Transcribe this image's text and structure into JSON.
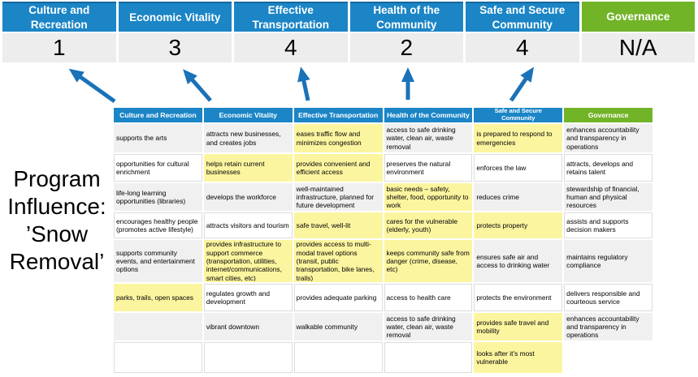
{
  "colors": {
    "blue": "#1b85c6",
    "blue_dark": "#16689c",
    "green": "#72b428",
    "highlight": "#fcf5a0",
    "band": "#f0f0f0",
    "score_bg": "#ededed",
    "arrow": "#1a72b8"
  },
  "program_label": "Program Influence: ’Snow Removal’",
  "pillars": [
    {
      "id": "culture-and-recreation",
      "label": "Culture and Recreation",
      "score": "1",
      "theme": "blue"
    },
    {
      "id": "economic-vitality",
      "label": "Economic Vitality",
      "score": "3",
      "theme": "blue"
    },
    {
      "id": "effective-transportation",
      "label": "Effective Transportation",
      "score": "4",
      "theme": "blue"
    },
    {
      "id": "health-of-the-community",
      "label": "Health of the Community",
      "score": "2",
      "theme": "blue"
    },
    {
      "id": "safe-and-secure-community",
      "label": "Safe and Secure Community",
      "score": "4",
      "theme": "blue"
    },
    {
      "id": "governance",
      "label": "Governance",
      "score": "N/A",
      "theme": "green"
    }
  ],
  "matrix": {
    "headers": [
      {
        "label": "Culture and Recreation",
        "theme": "blue"
      },
      {
        "label": "Economic Vitality",
        "theme": "blue"
      },
      {
        "label": "Effective Transportation",
        "theme": "blue"
      },
      {
        "label": "Health of the Community",
        "theme": "blue"
      },
      {
        "label": "Safe and Secure Community",
        "theme": "blue"
      },
      {
        "label": "Governance",
        "theme": "green"
      }
    ],
    "rows": [
      [
        {
          "text": "supports the arts"
        },
        {
          "text": "attracts new businesses, and creates jobs"
        },
        {
          "text": "eases traffic flow and minimizes congestion",
          "highlight": true
        },
        {
          "text": "access to safe drinking water, clean air, waste removal"
        },
        {
          "text": "is prepared to respond to emergencies",
          "highlight": true
        },
        {
          "text": "enhances accountability and transparency in operations"
        }
      ],
      [
        {
          "text": "opportunities for cultural enrichment"
        },
        {
          "text": "helps retain current businesses",
          "highlight": true
        },
        {
          "text": "provides convenient and efficient access",
          "highlight": true
        },
        {
          "text": "preserves the natural environment"
        },
        {
          "text": "enforces the law"
        },
        {
          "text": "attracts, develops and retains talent"
        }
      ],
      [
        {
          "text": "life-long learning opportunities (libraries)"
        },
        {
          "text": "develops the workforce"
        },
        {
          "text": "well-maintained infrastructure, planned for future development"
        },
        {
          "text": "basic needs – safety, shelter, food, opportunity to work",
          "highlight": true
        },
        {
          "text": "reduces crime"
        },
        {
          "text": "stewardship of financial, human and physical resources"
        }
      ],
      [
        {
          "text": "encourages healthy people (promotes active lifestyle)"
        },
        {
          "text": "attracts visitors and tourism"
        },
        {
          "text": "safe travel, well-lit",
          "highlight": true
        },
        {
          "text": "cares for the vulnerable (elderly, youth)",
          "highlight": true
        },
        {
          "text": "protects property",
          "highlight": true
        },
        {
          "text": "assists and supports decision makers"
        }
      ],
      [
        {
          "text": "supports community events, and entertainment options"
        },
        {
          "text": "provides infrastructure to support commerce (transportation, utilities, internet/communications, smart cities, etc)",
          "highlight": true
        },
        {
          "text": "provides access to multi-modal travel options (transit, public transportation, bike lanes, trails)",
          "highlight": true
        },
        {
          "text": "keeps community safe from danger (crime, disease, etc)",
          "highlight": true
        },
        {
          "text": "ensures safe air and access to drinking water"
        },
        {
          "text": "maintains regulatory compliance"
        }
      ],
      [
        {
          "text": "parks, trails, open spaces",
          "highlight": true
        },
        {
          "text": "regulates growth and development"
        },
        {
          "text": "provides adequate parking"
        },
        {
          "text": "access to health care"
        },
        {
          "text": "protects the environment"
        },
        {
          "text": "delivers responsible and courteous service"
        }
      ],
      [
        {
          "text": ""
        },
        {
          "text": "vibrant downtown"
        },
        {
          "text": "walkable community"
        },
        {
          "text": "access to safe drinking water, clean air, waste removal"
        },
        {
          "text": "provides safe travel and mobility",
          "highlight": true
        },
        {
          "text": "enhances accountability and transparency in operations"
        }
      ],
      [
        {
          "text": ""
        },
        {
          "text": ""
        },
        {
          "text": ""
        },
        {
          "text": ""
        },
        {
          "text": "looks after it's most vulnerable",
          "highlight": true
        },
        {
          "text": "",
          "blank": true
        }
      ]
    ]
  }
}
